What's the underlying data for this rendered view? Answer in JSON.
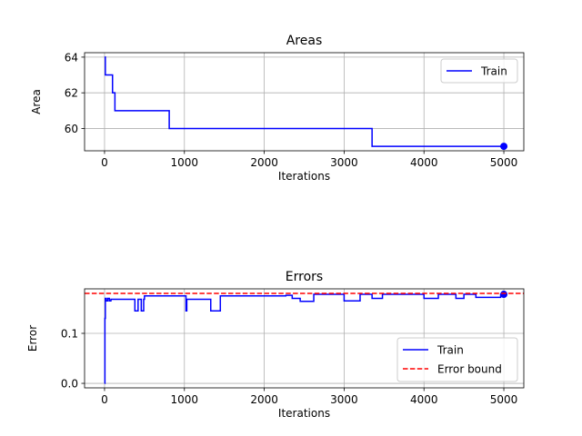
{
  "chart_data": [
    {
      "type": "line",
      "title": "Areas",
      "xlabel": "Iterations",
      "ylabel": "Area",
      "xlim": [
        -250,
        5250
      ],
      "ylim": [
        58.75,
        64.25
      ],
      "xticks": [
        0,
        1000,
        2000,
        3000,
        4000,
        5000
      ],
      "xtick_labels": [
        "0",
        "1000",
        "2000",
        "3000",
        "4000",
        "5000"
      ],
      "yticks": [
        60,
        62,
        64
      ],
      "ytick_labels": [
        "60",
        "62",
        "64"
      ],
      "grid": true,
      "legend_position": "upper right",
      "series": [
        {
          "name": "Train",
          "color": "#0000ff",
          "style": "steps-post",
          "x": [
            0,
            10,
            100,
            130,
            810,
            3350,
            5000
          ],
          "values": [
            64,
            63,
            62,
            61,
            60,
            59,
            59
          ],
          "end_marker": {
            "x": 5000,
            "y": 59
          }
        }
      ]
    },
    {
      "type": "line",
      "title": "Errors",
      "xlabel": "Iterations",
      "ylabel": "Error",
      "xlim": [
        -250,
        5250
      ],
      "ylim": [
        -0.009,
        0.189
      ],
      "xticks": [
        0,
        1000,
        2000,
        3000,
        4000,
        5000
      ],
      "xtick_labels": [
        "0",
        "1000",
        "2000",
        "3000",
        "4000",
        "5000"
      ],
      "yticks": [
        0.0,
        0.1
      ],
      "ytick_labels": [
        "0.0",
        "0.1"
      ],
      "grid": true,
      "legend_position": "lower right",
      "series": [
        {
          "name": "Train",
          "color": "#0000ff",
          "style": "steps-post",
          "x": [
            0,
            5,
            10,
            20,
            40,
            60,
            80,
            380,
            420,
            460,
            490,
            500,
            1020,
            1030,
            1330,
            1450,
            2270,
            2350,
            2450,
            2620,
            3000,
            3200,
            3350,
            3480,
            4000,
            4180,
            4400,
            4500,
            4650,
            4960,
            5000
          ],
          "values": [
            0.0,
            0.13,
            0.17,
            0.165,
            0.17,
            0.165,
            0.168,
            0.145,
            0.168,
            0.145,
            0.168,
            0.175,
            0.145,
            0.168,
            0.145,
            0.175,
            0.176,
            0.17,
            0.164,
            0.178,
            0.165,
            0.178,
            0.17,
            0.178,
            0.17,
            0.178,
            0.17,
            0.178,
            0.172,
            0.178,
            0.178
          ],
          "end_marker": {
            "x": 5000,
            "y": 0.178
          }
        },
        {
          "name": "Error bound",
          "color": "#ff0000",
          "style": "dashed",
          "y": 0.18
        }
      ]
    }
  ]
}
